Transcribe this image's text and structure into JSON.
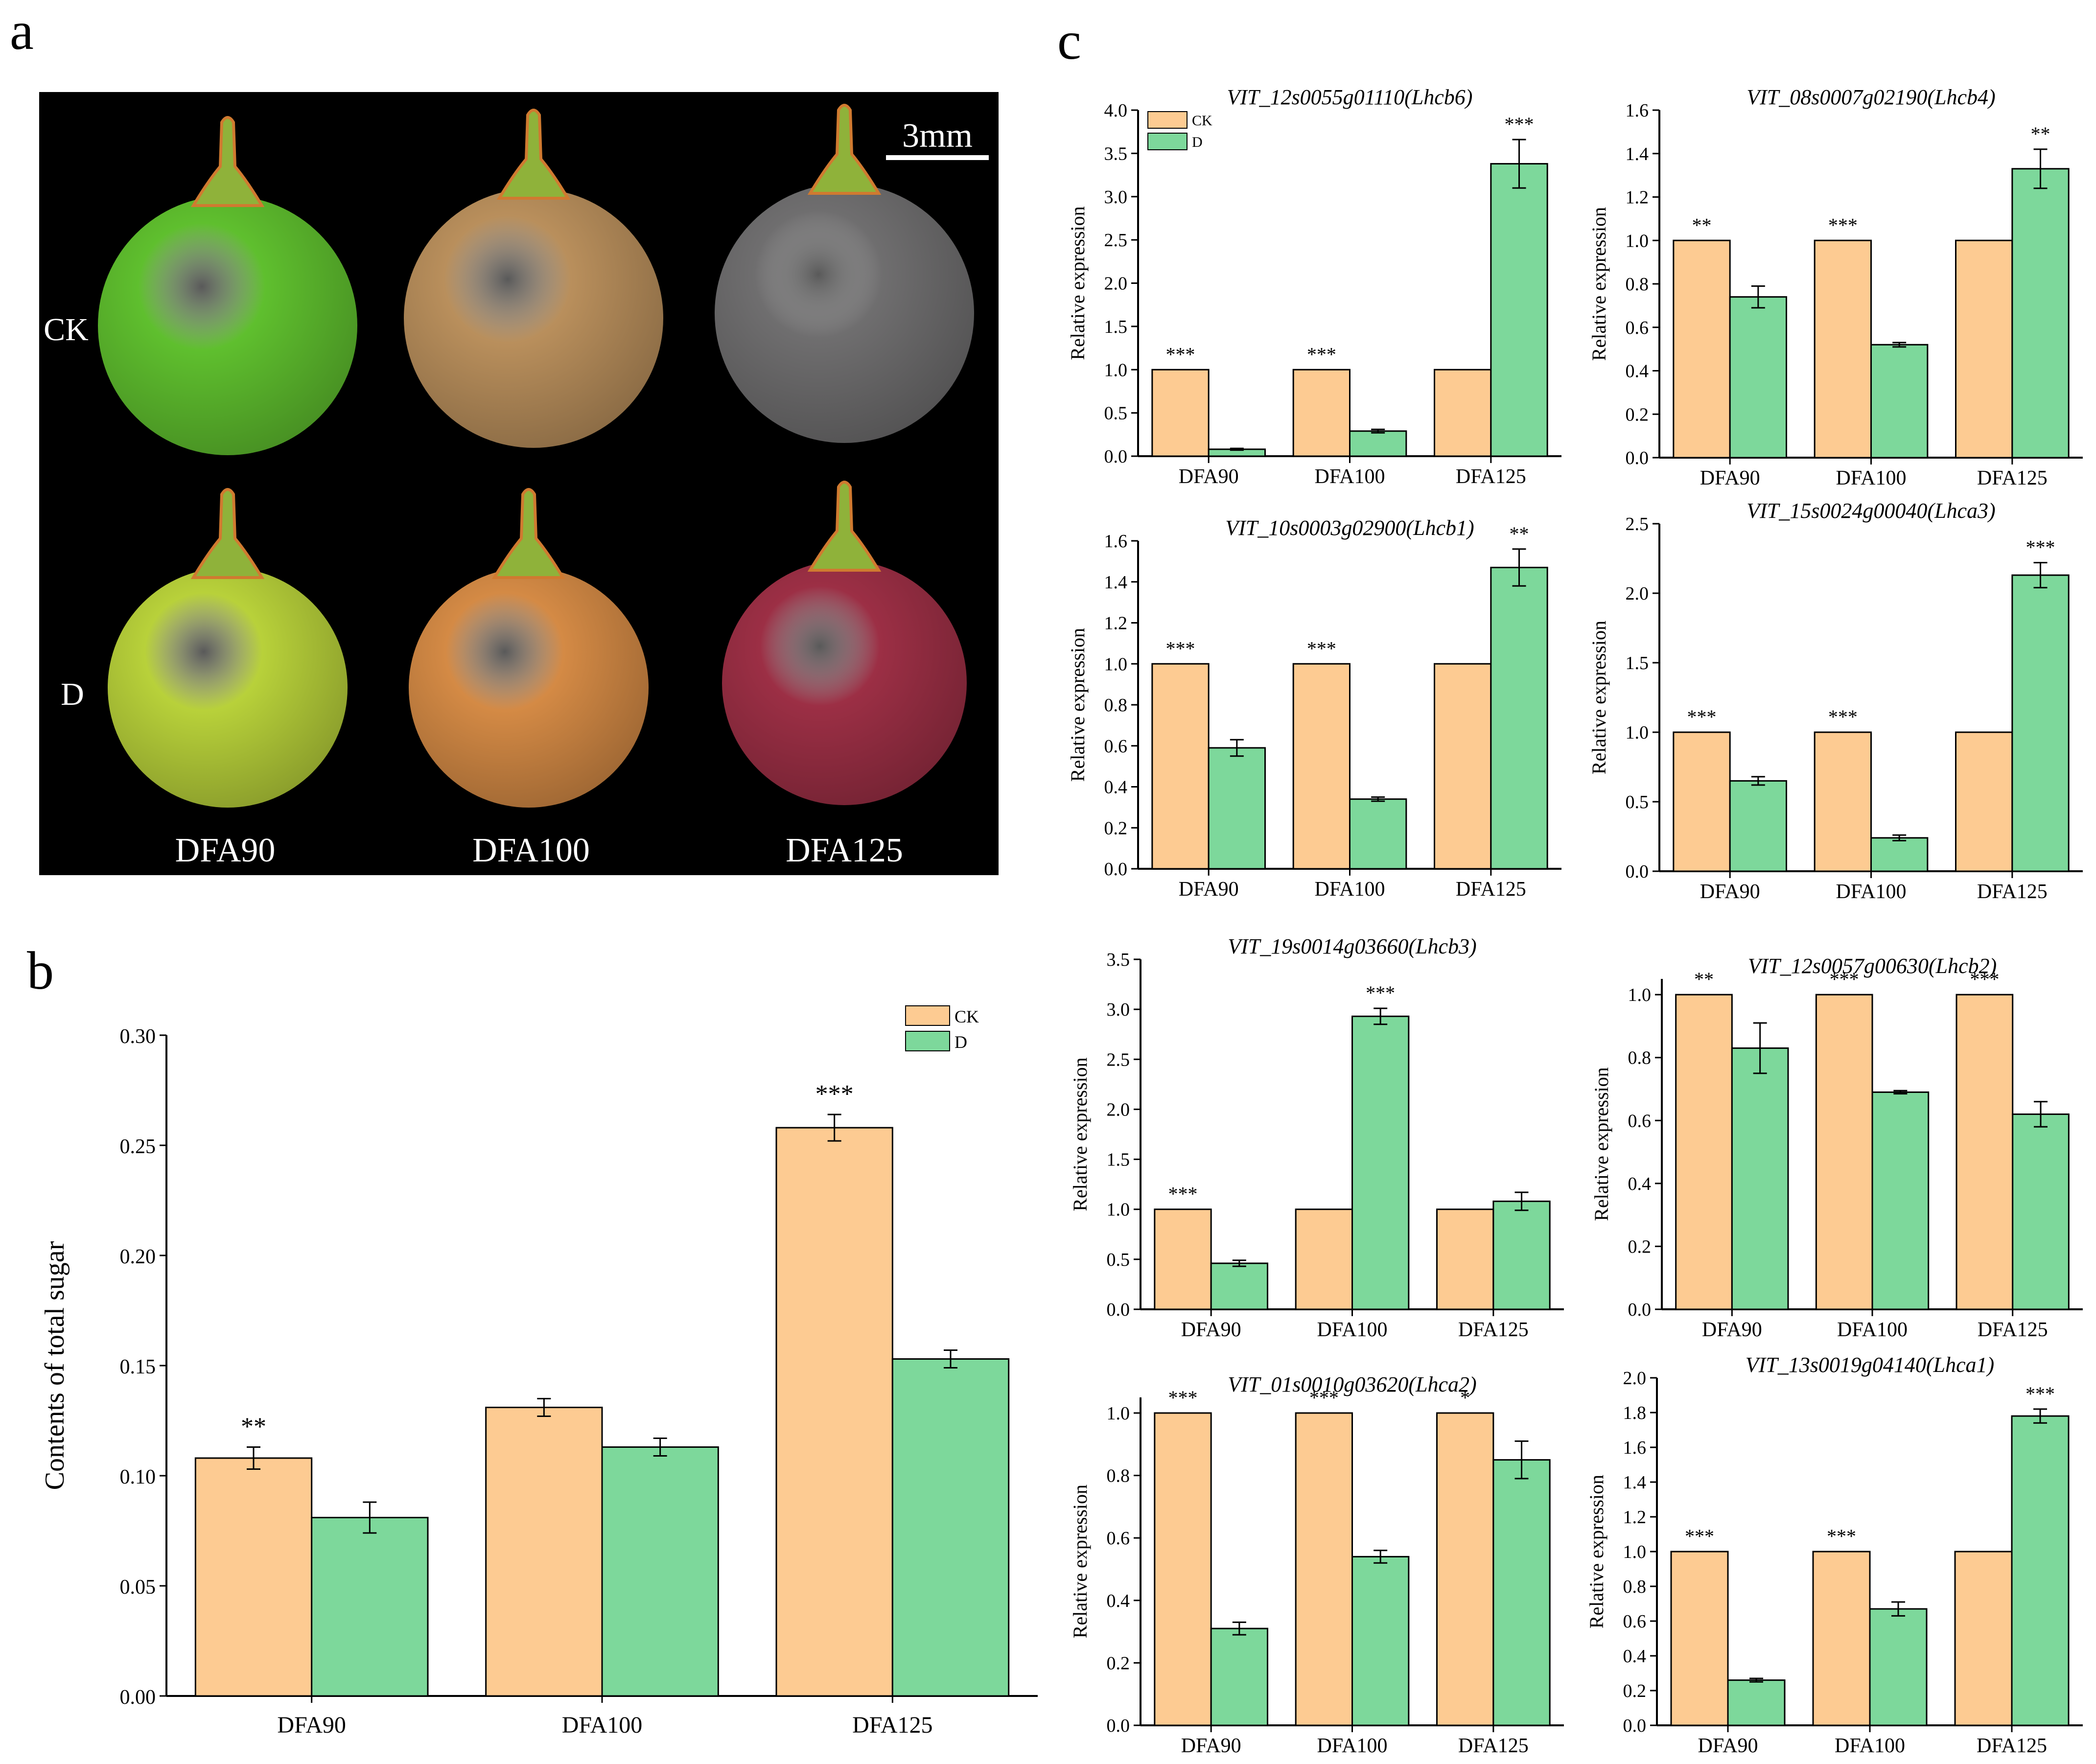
{
  "panel_labels": {
    "a": "a",
    "b": "b",
    "c": "c"
  },
  "colors": {
    "ck": "#FDCB92",
    "d": "#7DD89B",
    "axis": "#000000",
    "photo_bg": "#000000"
  },
  "photo": {
    "scale_label": "3mm",
    "row_labels": [
      "CK",
      "D"
    ],
    "col_labels": [
      "DFA90",
      "DFA100",
      "DFA125"
    ],
    "fruit_colors": {
      "CK": [
        "#5fbf2e",
        "#b98f5c",
        "#6f6e6f"
      ],
      "D": [
        "#b8d13a",
        "#d48a45",
        "#9c2f45"
      ]
    }
  },
  "chart_data": [
    {
      "id": "b",
      "type": "bar",
      "title": "",
      "ylabel": "Contents of total sugar",
      "categories": [
        "DFA90",
        "DFA100",
        "DFA125"
      ],
      "ylim": [
        0,
        0.3
      ],
      "yticks": [
        "0.00",
        "0.05",
        "0.10",
        "0.15",
        "0.20",
        "0.25",
        "0.30"
      ],
      "legend": [
        "CK",
        "D"
      ],
      "series": [
        {
          "name": "CK",
          "values": [
            0.108,
            0.131,
            0.258
          ],
          "errors": [
            0.005,
            0.004,
            0.006
          ]
        },
        {
          "name": "D",
          "values": [
            0.081,
            0.113,
            0.153
          ],
          "errors": [
            0.007,
            0.004,
            0.004
          ]
        }
      ],
      "annotations": [
        "**",
        "",
        "***"
      ]
    },
    {
      "id": "c1",
      "type": "bar",
      "title": "VIT_12s0055g01110(Lhcb6)",
      "ylabel": "Relative expression",
      "categories": [
        "DFA90",
        "DFA100",
        "DFA125"
      ],
      "ylim": [
        0,
        4.0
      ],
      "yticks": [
        "0.0",
        "0.5",
        "1.0",
        "1.5",
        "2.0",
        "2.5",
        "3.0",
        "3.5",
        "4.0"
      ],
      "legend": [
        "CK",
        "D"
      ],
      "series": [
        {
          "name": "CK",
          "values": [
            1.0,
            1.0,
            1.0
          ],
          "errors": [
            0,
            0,
            0
          ]
        },
        {
          "name": "D",
          "values": [
            0.08,
            0.29,
            3.38
          ],
          "errors": [
            0.01,
            0.02,
            0.28
          ]
        }
      ],
      "annotations": [
        "***",
        "***",
        "***"
      ]
    },
    {
      "id": "c2",
      "type": "bar",
      "title": "VIT_08s0007g02190(Lhcb4)",
      "ylabel": "Relative expression",
      "categories": [
        "DFA90",
        "DFA100",
        "DFA125"
      ],
      "ylim": [
        0,
        1.6
      ],
      "yticks": [
        "0.0",
        "0.2",
        "0.4",
        "0.6",
        "0.8",
        "1.0",
        "1.2",
        "1.4",
        "1.6"
      ],
      "series": [
        {
          "name": "CK",
          "values": [
            1.0,
            1.0,
            1.0
          ],
          "errors": [
            0,
            0,
            0
          ]
        },
        {
          "name": "D",
          "values": [
            0.74,
            0.52,
            1.33
          ],
          "errors": [
            0.05,
            0.01,
            0.09
          ]
        }
      ],
      "annotations": [
        "**",
        "***",
        "**"
      ]
    },
    {
      "id": "c3",
      "type": "bar",
      "title": "VIT_10s0003g02900(Lhcb1)",
      "ylabel": "Relative expression",
      "categories": [
        "DFA90",
        "DFA100",
        "DFA125"
      ],
      "ylim": [
        0,
        1.6
      ],
      "yticks": [
        "0.0",
        "0.2",
        "0.4",
        "0.6",
        "0.8",
        "1.0",
        "1.2",
        "1.4",
        "1.6"
      ],
      "series": [
        {
          "name": "CK",
          "values": [
            1.0,
            1.0,
            1.0
          ],
          "errors": [
            0,
            0,
            0
          ]
        },
        {
          "name": "D",
          "values": [
            0.59,
            0.34,
            1.47
          ],
          "errors": [
            0.04,
            0.01,
            0.09
          ]
        }
      ],
      "annotations": [
        "***",
        "***",
        "**"
      ]
    },
    {
      "id": "c4",
      "type": "bar",
      "title": "VIT_15s0024g00040(Lhca3)",
      "ylabel": "Relative expression",
      "categories": [
        "DFA90",
        "DFA100",
        "DFA125"
      ],
      "ylim": [
        0,
        2.5
      ],
      "yticks": [
        "0.0",
        "0.5",
        "1.0",
        "1.5",
        "2.0",
        "2.5"
      ],
      "series": [
        {
          "name": "CK",
          "values": [
            1.0,
            1.0,
            1.0
          ],
          "errors": [
            0,
            0,
            0
          ]
        },
        {
          "name": "D",
          "values": [
            0.65,
            0.24,
            2.13
          ],
          "errors": [
            0.03,
            0.02,
            0.09
          ]
        }
      ],
      "annotations": [
        "***",
        "***",
        "***"
      ]
    },
    {
      "id": "c5",
      "type": "bar",
      "title": "VIT_19s0014g03660(Lhcb3)",
      "ylabel": "Relative expression",
      "categories": [
        "DFA90",
        "DFA100",
        "DFA125"
      ],
      "ylim": [
        0,
        3.5
      ],
      "yticks": [
        "0.0",
        "0.5",
        "1.0",
        "1.5",
        "2.0",
        "2.5",
        "3.0",
        "3.5"
      ],
      "series": [
        {
          "name": "CK",
          "values": [
            1.0,
            1.0,
            1.0
          ],
          "errors": [
            0,
            0,
            0
          ]
        },
        {
          "name": "D",
          "values": [
            0.46,
            2.93,
            1.08
          ],
          "errors": [
            0.03,
            0.08,
            0.09
          ]
        }
      ],
      "annotations": [
        "***",
        "***",
        ""
      ]
    },
    {
      "id": "c6",
      "type": "bar",
      "title": "VIT_12s0057g00630(Lhcb2)",
      "ylabel": "Relative expression",
      "categories": [
        "DFA90",
        "DFA100",
        "DFA125"
      ],
      "ylim": [
        0,
        1.05
      ],
      "yticks": [
        "0.0",
        "0.2",
        "0.4",
        "0.6",
        "0.8",
        "1.0"
      ],
      "series": [
        {
          "name": "CK",
          "values": [
            1.0,
            1.0,
            1.0
          ],
          "errors": [
            0,
            0,
            0
          ]
        },
        {
          "name": "D",
          "values": [
            0.83,
            0.69,
            0.62
          ],
          "errors": [
            0.08,
            0.005,
            0.04
          ]
        }
      ],
      "annotations": [
        "**",
        "***",
        "***"
      ]
    },
    {
      "id": "c7",
      "type": "bar",
      "title": "VIT_01s0010g03620(Lhca2)",
      "ylabel": "Relative expression",
      "categories": [
        "DFA90",
        "DFA100",
        "DFA125"
      ],
      "ylim": [
        0,
        1.05
      ],
      "yticks": [
        "0.0",
        "0.2",
        "0.4",
        "0.6",
        "0.8",
        "1.0"
      ],
      "series": [
        {
          "name": "CK",
          "values": [
            1.0,
            1.0,
            1.0
          ],
          "errors": [
            0,
            0,
            0
          ]
        },
        {
          "name": "D",
          "values": [
            0.31,
            0.54,
            0.85
          ],
          "errors": [
            0.02,
            0.02,
            0.06
          ]
        }
      ],
      "annotations": [
        "***",
        "***",
        "*"
      ]
    },
    {
      "id": "c8",
      "type": "bar",
      "title": "VIT_13s0019g04140(Lhca1)",
      "ylabel": "Relative expression",
      "categories": [
        "DFA90",
        "DFA100",
        "DFA125"
      ],
      "ylim": [
        0,
        2.0
      ],
      "yticks": [
        "0.0",
        "0.2",
        "0.4",
        "0.6",
        "0.8",
        "1.0",
        "1.2",
        "1.4",
        "1.6",
        "1.8",
        "2.0"
      ],
      "series": [
        {
          "name": "CK",
          "values": [
            1.0,
            1.0,
            1.0
          ],
          "errors": [
            0,
            0,
            0
          ]
        },
        {
          "name": "D",
          "values": [
            0.26,
            0.67,
            1.78
          ],
          "errors": [
            0.01,
            0.04,
            0.04
          ]
        }
      ],
      "annotations": [
        "***",
        "***",
        "***"
      ]
    }
  ]
}
